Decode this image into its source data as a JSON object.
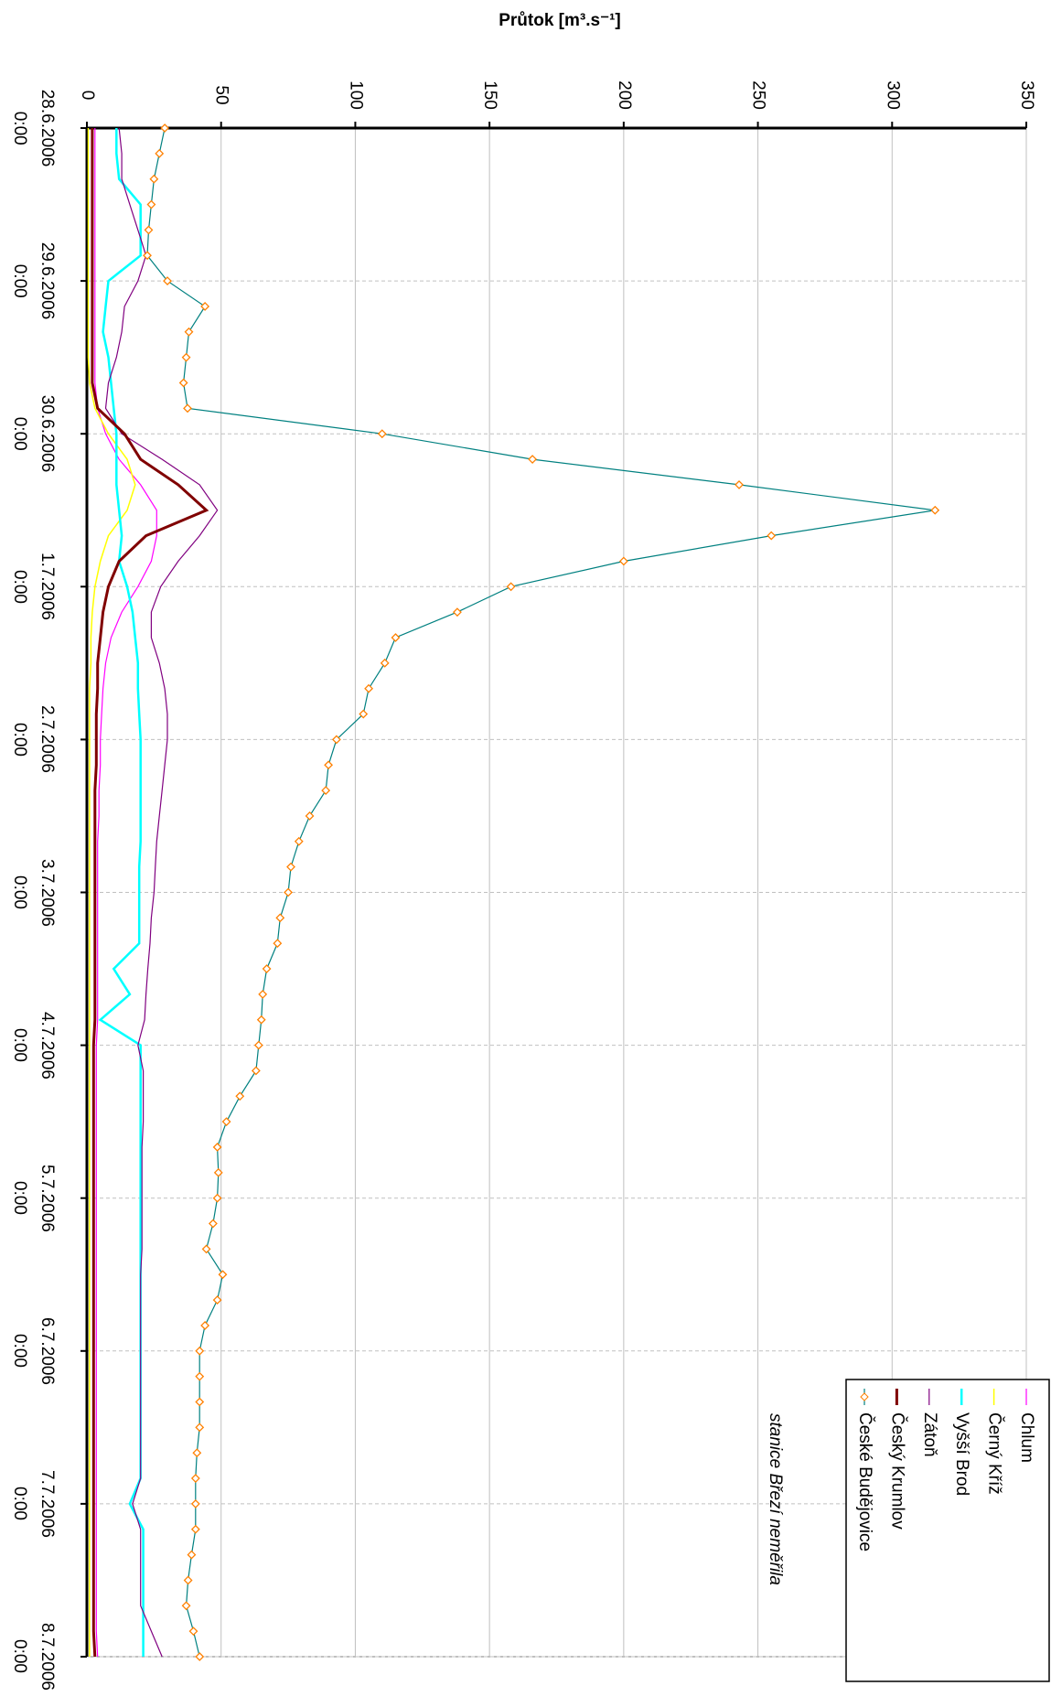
{
  "chart_data": {
    "type": "line",
    "y_label": "Průtok [m³.s⁻¹]",
    "annotation": "stanice Březí neměřila",
    "xlim": [
      0,
      240
    ],
    "xticks": [
      {
        "value": 0,
        "label": "28.6.2006\n0:00"
      },
      {
        "value": 24,
        "label": "29.6.2006\n0:00"
      },
      {
        "value": 48,
        "label": "30.6.2006\n0:00"
      },
      {
        "value": 72,
        "label": "1.7.2006\n0:00"
      },
      {
        "value": 96,
        "label": "2.7.2006\n0:00"
      },
      {
        "value": 120,
        "label": "3.7.2006\n0:00"
      },
      {
        "value": 144,
        "label": "4.7.2006\n0:00"
      },
      {
        "value": 168,
        "label": "5.7.2006\n0:00"
      },
      {
        "value": 192,
        "label": "6.7.2006\n0:00"
      },
      {
        "value": 216,
        "label": "7.7.2006\n0:00"
      },
      {
        "value": 240,
        "label": "8.7.2006\n0:00"
      }
    ],
    "ylim": [
      0,
      350
    ],
    "yticks": [
      0,
      50,
      100,
      150,
      200,
      250,
      300,
      350
    ],
    "grid": true,
    "legend": "bottom-right",
    "x": [
      0,
      4,
      8,
      12,
      16,
      20,
      24,
      28,
      32,
      36,
      40,
      44,
      48,
      52,
      56,
      60,
      64,
      68,
      72,
      76,
      80,
      84,
      88,
      92,
      96,
      100,
      104,
      108,
      112,
      116,
      120,
      124,
      128,
      132,
      136,
      140,
      144,
      148,
      152,
      156,
      160,
      164,
      168,
      172,
      176,
      180,
      184,
      188,
      192,
      196,
      200,
      204,
      208,
      212,
      216,
      220,
      224,
      228,
      232,
      236,
      240
    ],
    "series": [
      {
        "name": "Chlum",
        "color": "#ff00ff",
        "width": 1.2,
        "values": [
          3,
          3,
          3,
          3,
          3,
          3,
          3,
          3,
          3,
          3,
          3,
          4,
          7,
          12,
          20,
          26,
          26,
          24,
          19,
          13,
          9,
          7,
          6,
          5.5,
          5,
          5,
          4.5,
          4.5,
          4,
          4,
          4,
          4,
          4,
          4,
          4,
          4,
          3.5,
          3.5,
          3.5,
          3.5,
          3.5,
          3.5,
          3.5,
          3.5,
          3.5,
          3.5,
          3.5,
          3.5,
          3.5,
          3.5,
          3.5,
          3.5,
          3.5,
          3.5,
          3.5,
          3.5,
          3.5,
          3.5,
          3.5,
          3.5,
          4
        ]
      },
      {
        "name": "Černý Kříž",
        "color": "#ffff00",
        "width": 1.5,
        "values": [
          0.5,
          0.5,
          0.5,
          0.5,
          0.5,
          0.5,
          0.5,
          0.5,
          0.5,
          0.5,
          1,
          3,
          8,
          15,
          18,
          15,
          8,
          5,
          3,
          2,
          1.5,
          1.5,
          1,
          1,
          1,
          1,
          1,
          1,
          1,
          1,
          1,
          1,
          1,
          1,
          1,
          1,
          1,
          1,
          1,
          1,
          1,
          1,
          1,
          1,
          1,
          1,
          1,
          1,
          1,
          1,
          1,
          1,
          1,
          1,
          1,
          1,
          1,
          1,
          1,
          1,
          1
        ]
      },
      {
        "name": "Vyšší Brod",
        "color": "#00ffff",
        "width": 2.5,
        "values": [
          11,
          11,
          12,
          20,
          20,
          20,
          8,
          7,
          6,
          8,
          9,
          10,
          11,
          11,
          11,
          12,
          13,
          12,
          15,
          17,
          18,
          19,
          19,
          19.5,
          20,
          20,
          20,
          20,
          20,
          19.5,
          19.5,
          19.5,
          19.5,
          10,
          16,
          5,
          20,
          20,
          20,
          20,
          20,
          20,
          20,
          20,
          20,
          20,
          20,
          20,
          20,
          20,
          20,
          20,
          20,
          20,
          16,
          21,
          21,
          21,
          21,
          21,
          21
        ]
      },
      {
        "name": "Zátoň",
        "color": "#800080",
        "width": 1.2,
        "values": [
          12,
          13,
          13,
          16,
          19,
          22,
          19,
          14,
          13,
          11,
          8,
          7,
          13,
          28,
          42,
          48.6,
          42,
          34,
          27.5,
          24,
          24,
          27,
          29,
          30,
          30,
          29,
          28,
          27,
          26,
          25.5,
          25,
          24,
          23.5,
          22.7,
          22,
          21.5,
          19,
          21,
          21,
          21,
          20.5,
          20.5,
          20.5,
          20.5,
          20.5,
          20,
          20,
          20,
          20,
          20,
          20,
          20,
          20,
          20,
          17,
          20,
          20,
          20,
          20,
          24,
          28
        ]
      },
      {
        "name": "Český Krumlov",
        "color": "#800000",
        "width": 3,
        "values": [
          2,
          2,
          2,
          2,
          2,
          2,
          2,
          2,
          2,
          2,
          2,
          4,
          14,
          20,
          34,
          44.5,
          22,
          12,
          8,
          6,
          5,
          4,
          4,
          3.5,
          3.5,
          3.5,
          3,
          3,
          3,
          3,
          3,
          3,
          3,
          3,
          3,
          3,
          2.5,
          2.5,
          2.5,
          2.5,
          2.5,
          2.5,
          2.5,
          2.5,
          2.5,
          2.5,
          2.5,
          2.5,
          2.5,
          2.5,
          2.5,
          2.5,
          2.5,
          2.5,
          2.5,
          2.5,
          2.5,
          2.5,
          2.5,
          2.5,
          3
        ]
      },
      {
        "name": "České Budějovice",
        "color": "#008080",
        "marker_color": "#ff8000",
        "width": 1.2,
        "values": [
          29,
          27,
          25,
          24,
          23,
          22.5,
          30,
          44,
          38,
          37,
          36,
          37.5,
          110,
          166,
          243,
          316,
          255,
          200,
          158,
          138,
          115,
          111,
          105,
          103,
          93,
          90,
          89,
          83,
          79,
          76,
          75,
          72,
          71,
          67,
          65.5,
          65,
          64,
          63,
          57,
          52,
          48.6,
          49,
          48.6,
          47,
          44.5,
          50.6,
          48.6,
          44,
          42,
          42,
          42,
          42,
          41,
          40.5,
          40.5,
          40.5,
          39,
          37.7,
          37,
          39.7,
          42
        ]
      }
    ]
  }
}
